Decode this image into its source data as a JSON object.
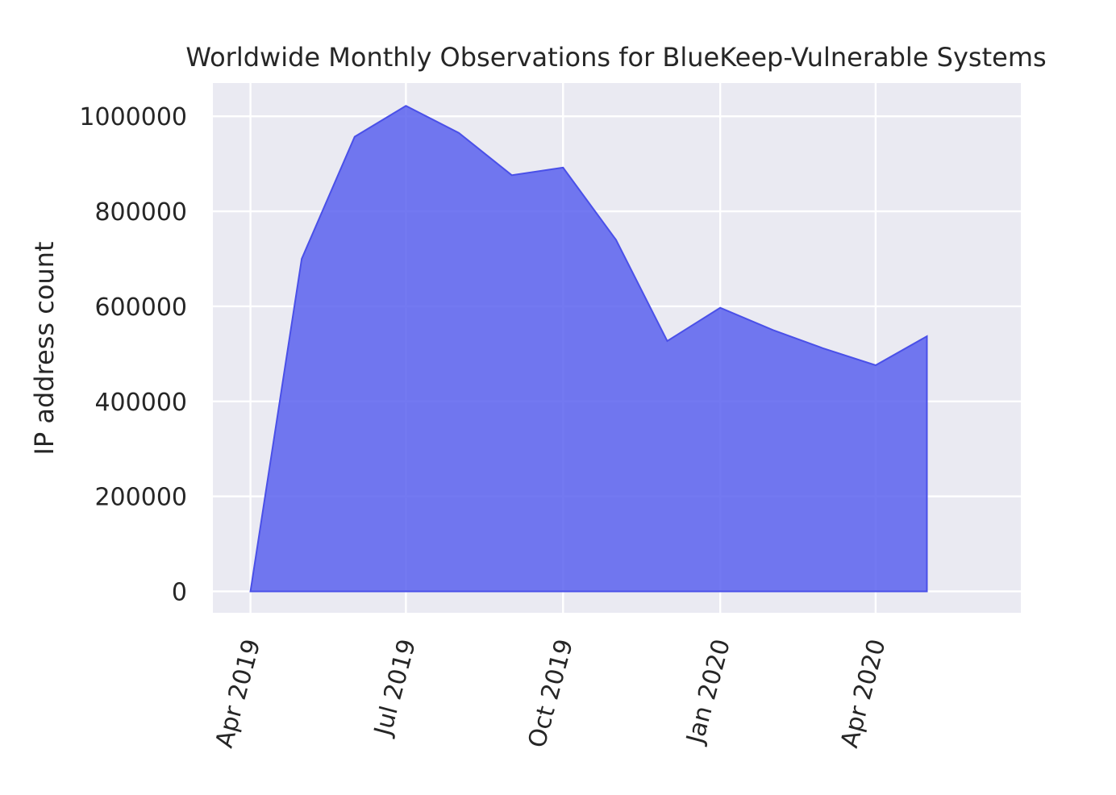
{
  "chart_data": {
    "type": "area",
    "title": "Worldwide Monthly Observations for BlueKeep-Vulnerable Systems",
    "xlabel": "",
    "ylabel": "IP address count",
    "x": [
      "2019-04",
      "2019-05",
      "2019-06",
      "2019-07",
      "2019-08",
      "2019-09",
      "2019-10",
      "2019-11",
      "2019-12",
      "2020-01",
      "2020-02",
      "2020-03",
      "2020-04",
      "2020-05"
    ],
    "series": [
      {
        "name": "IP address count",
        "values": [
          0,
          700000,
          957000,
          1022000,
          965000,
          876000,
          892000,
          740000,
          527000,
          597000,
          550000,
          512000,
          476000,
          537000
        ]
      }
    ],
    "yticks": [
      0,
      200000,
      400000,
      600000,
      800000,
      1000000
    ],
    "ytick_labels": [
      "0",
      "200000",
      "400000",
      "600000",
      "800000",
      "1000000"
    ],
    "xticks": [
      "2019-04",
      "2019-07",
      "2019-10",
      "2020-01",
      "2020-04"
    ],
    "xtick_labels": [
      "Apr 2019",
      "Jul 2019",
      "Oct 2019",
      "Jan 2020",
      "Apr 2020"
    ],
    "xlim": [
      "2019-03-10",
      "2020-06-25"
    ],
    "ylim": [
      -45000,
      1070000
    ],
    "grid": true,
    "colors": {
      "fill": "#5b62ee",
      "line": "#4a50e8",
      "plot_bg": "#eaeaf2",
      "grid": "#ffffff"
    }
  }
}
